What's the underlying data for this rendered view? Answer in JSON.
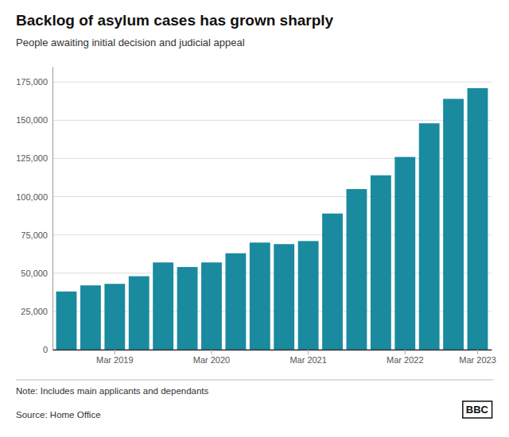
{
  "chart_data": {
    "type": "bar",
    "title": "Backlog of asylum cases has grown sharply",
    "subtitle": "People awaiting initial decision and judicial appeal",
    "note": "Note: Includes main applicants and dependants",
    "source": "Source: Home Office",
    "annotations": [
      "BBC"
    ],
    "categories": [
      null,
      null,
      "Mar 2019",
      null,
      null,
      null,
      "Mar 2020",
      null,
      null,
      null,
      "Mar 2021",
      null,
      null,
      null,
      "Mar 2022",
      null,
      null,
      "Mar 2023"
    ],
    "values": [
      38000,
      42000,
      43000,
      48000,
      57000,
      54000,
      57000,
      63000,
      70000,
      69000,
      71000,
      89000,
      105000,
      114000,
      126000,
      148000,
      164000,
      171000
    ],
    "color": "#1a8a9e",
    "ylim": [
      0,
      185000
    ],
    "yticks": [
      0,
      {
        "value": 25000,
        "label": "25,000"
      },
      {
        "value": 50000,
        "label": "50,000"
      },
      {
        "value": 75000,
        "label": "75,000"
      },
      {
        "value": 100000,
        "label": "100,000"
      },
      {
        "value": 125000,
        "label": "125,000"
      },
      {
        "value": 150000,
        "label": "150,000"
      },
      {
        "value": 175000,
        "label": "175,000"
      }
    ],
    "grid": true
  }
}
